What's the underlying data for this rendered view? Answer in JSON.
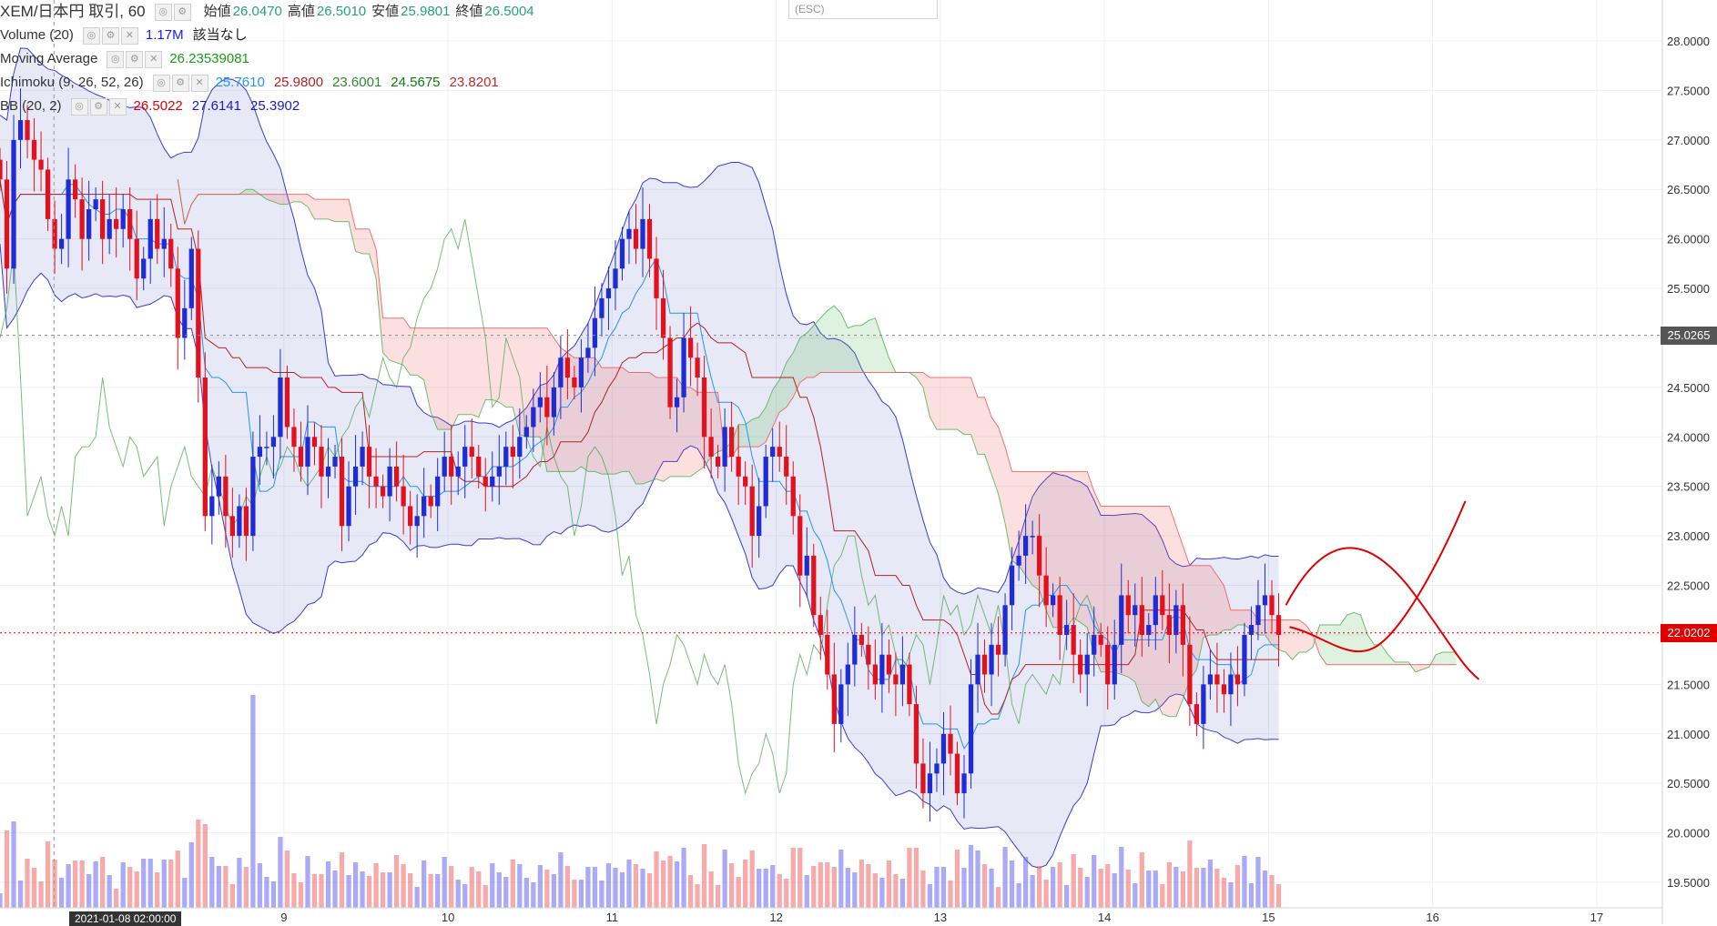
{
  "legend": {
    "symbol": "XEM/日本円 取引, 60",
    "ohlc": [
      {
        "label": "始値",
        "value": "26.0470"
      },
      {
        "label": "高値",
        "value": "26.5010"
      },
      {
        "label": "安値",
        "value": "25.9801"
      },
      {
        "label": "終値",
        "value": "26.5004"
      }
    ],
    "volume": {
      "title": "Volume (20)",
      "value": "1.17M",
      "extra": "該当なし",
      "color": "#1a1aff"
    },
    "ma": {
      "title": "Moving Average",
      "value": "26.23539081",
      "color": "#1a9a1a"
    },
    "ichimoku": {
      "title": "Ichimoku (9, 26, 52, 26)",
      "values": [
        {
          "v": "25.7610",
          "color": "#2196f3"
        },
        {
          "v": "25.9800",
          "color": "#b22222"
        },
        {
          "v": "23.6001",
          "color": "#2e8b2e"
        },
        {
          "v": "24.5675",
          "color": "#0b7d0b"
        },
        {
          "v": "23.8201",
          "color": "#c62828"
        }
      ]
    },
    "bb": {
      "title": "BB (20, 2)",
      "values": [
        {
          "v": "26.5022",
          "color": "#e00000"
        },
        {
          "v": "27.6141",
          "color": "#1a1acc"
        },
        {
          "v": "25.3902",
          "color": "#1a1acc"
        }
      ]
    }
  },
  "esc_label": "(ESC)",
  "price_badges": [
    {
      "value": "25.0265",
      "bg": "#555555",
      "price": 25.0265
    },
    {
      "value": "22.0202",
      "bg": "#e00000",
      "price": 22.0202
    }
  ],
  "crosshair_date": "2021-01-08 02:00:00",
  "chart_data": {
    "type": "candlestick",
    "y_ticks": [
      "28.0000",
      "27.5000",
      "27.0000",
      "26.5000",
      "26.0000",
      "25.5000",
      "25.0000",
      "24.5000",
      "24.0000",
      "23.5000",
      "23.0000",
      "22.5000",
      "22.0000",
      "21.5000",
      "21.0000",
      "20.5000",
      "20.0000",
      "19.5000"
    ],
    "ylim": [
      19.2,
      28.3
    ],
    "x_ticks": [
      {
        "label": "9",
        "day": 9
      },
      {
        "label": "10",
        "day": 10
      },
      {
        "label": "11",
        "day": 11
      },
      {
        "label": "12",
        "day": 12
      },
      {
        "label": "13",
        "day": 13
      },
      {
        "label": "14",
        "day": 14
      },
      {
        "label": "15",
        "day": 15
      },
      {
        "label": "16",
        "day": 16
      },
      {
        "label": "17",
        "day": 17
      }
    ],
    "xlim_days": [
      7.27,
      17.4
    ],
    "bar_closes": [
      26.6,
      25.7,
      27.0,
      27.2,
      27.0,
      26.8,
      26.7,
      26.2,
      25.9,
      26.0,
      26.6,
      26.4,
      26.0,
      26.3,
      26.4,
      26.0,
      26.2,
      26.1,
      26.3,
      26.0,
      25.6,
      25.8,
      26.2,
      25.9,
      26.0,
      25.7,
      25.0,
      25.3,
      25.9,
      24.6,
      23.2,
      23.4,
      23.6,
      23.2,
      23.0,
      23.3,
      23.0,
      23.8,
      23.9,
      23.9,
      24.0,
      24.6,
      24.1,
      23.9,
      23.7,
      24.0,
      23.9,
      23.6,
      23.7,
      23.8,
      23.1,
      23.5,
      23.7,
      23.9,
      23.6,
      23.5,
      23.4,
      23.7,
      23.5,
      23.3,
      23.1,
      23.2,
      23.4,
      23.3,
      23.6,
      23.8,
      23.6,
      23.7,
      23.9,
      23.8,
      23.6,
      23.5,
      23.6,
      23.7,
      23.9,
      23.8,
      24.0,
      24.1,
      24.3,
      24.4,
      24.2,
      24.5,
      24.8,
      24.6,
      24.5,
      24.8,
      24.9,
      25.2,
      25.4,
      25.5,
      25.7,
      26.0,
      26.1,
      25.9,
      26.2,
      25.8,
      25.4,
      25.0,
      24.3,
      24.4,
      25.0,
      24.8,
      24.6,
      24.0,
      23.8,
      23.7,
      24.1,
      23.8,
      23.6,
      23.5,
      23.0,
      23.3,
      23.8,
      23.9,
      23.8,
      23.6,
      23.2,
      22.6,
      22.8,
      22.2,
      22.0,
      21.6,
      21.1,
      21.5,
      21.7,
      22.0,
      21.9,
      21.7,
      21.5,
      21.8,
      21.6,
      21.5,
      21.7,
      21.3,
      20.7,
      20.4,
      20.6,
      20.7,
      21.0,
      20.8,
      20.4,
      20.6,
      21.5,
      21.8,
      21.6,
      21.9,
      21.8,
      22.3,
      22.7,
      22.8,
      23.0,
      23.0,
      22.6,
      22.3,
      22.4,
      22.0,
      22.1,
      21.8,
      21.6,
      21.8,
      22.0,
      21.9,
      21.5,
      21.9,
      22.4,
      22.2,
      22.3,
      22.0,
      22.1,
      22.4,
      22.2,
      22.0,
      22.3,
      21.9,
      21.3,
      21.1,
      21.5,
      21.6,
      21.5,
      21.4,
      21.6,
      21.5,
      22.0,
      22.1,
      22.3,
      22.4,
      22.2,
      22.0
    ],
    "bb_window": 20,
    "bb_mult": 2,
    "volume_spikes": [
      {
        "bar": 37,
        "volume": 1.17
      }
    ],
    "last_price": 22.0202,
    "dashed_level": 25.0265
  }
}
